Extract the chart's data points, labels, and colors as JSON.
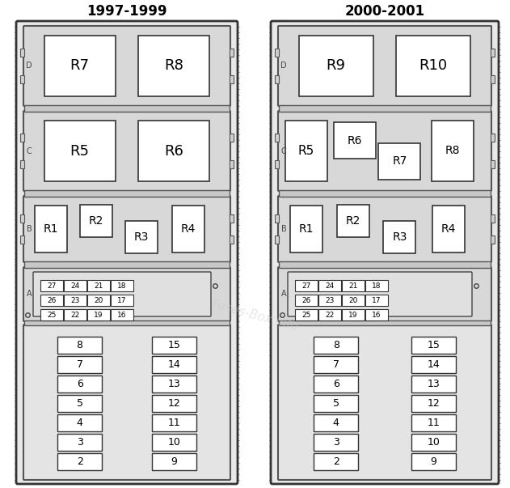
{
  "title_left": "1997-1999",
  "title_right": "2000-2001",
  "panel_bg": "#e8e8e8",
  "section_bg": "#d8d8d8",
  "relay_bg": "#ffffff",
  "fuse_bg": "#ffffff",
  "border_dark": "#333333",
  "border_mid": "#555555",
  "text_color": "#000000",
  "left_relays_D": [
    "R7",
    "R8"
  ],
  "left_relays_C": [
    "R5",
    "R6"
  ],
  "left_relays_B_large": [
    "R1",
    "R4"
  ],
  "left_relays_B_small": [
    "R2",
    "R3"
  ],
  "right_relays_D": [
    "R9",
    "R10"
  ],
  "right_relays_C_large": [
    "R5",
    "R8"
  ],
  "right_relays_C_small": [
    "R6",
    "R7"
  ],
  "right_relays_B_large": [
    "R1",
    "R4"
  ],
  "right_relays_B_small": [
    "R2",
    "R3"
  ],
  "fuses_col1": [
    8,
    7,
    6,
    5,
    4,
    3,
    2
  ],
  "fuses_col2": [
    15,
    14,
    13,
    12,
    11,
    10,
    9
  ],
  "mini_fuses_row1": [
    "27",
    "24",
    "21",
    "18"
  ],
  "mini_fuses_row2": [
    "26",
    "23",
    "20",
    "17"
  ],
  "mini_fuses_row3": [
    "25",
    "22",
    "19",
    "16"
  ],
  "watermark": "Fuses-Box.info"
}
